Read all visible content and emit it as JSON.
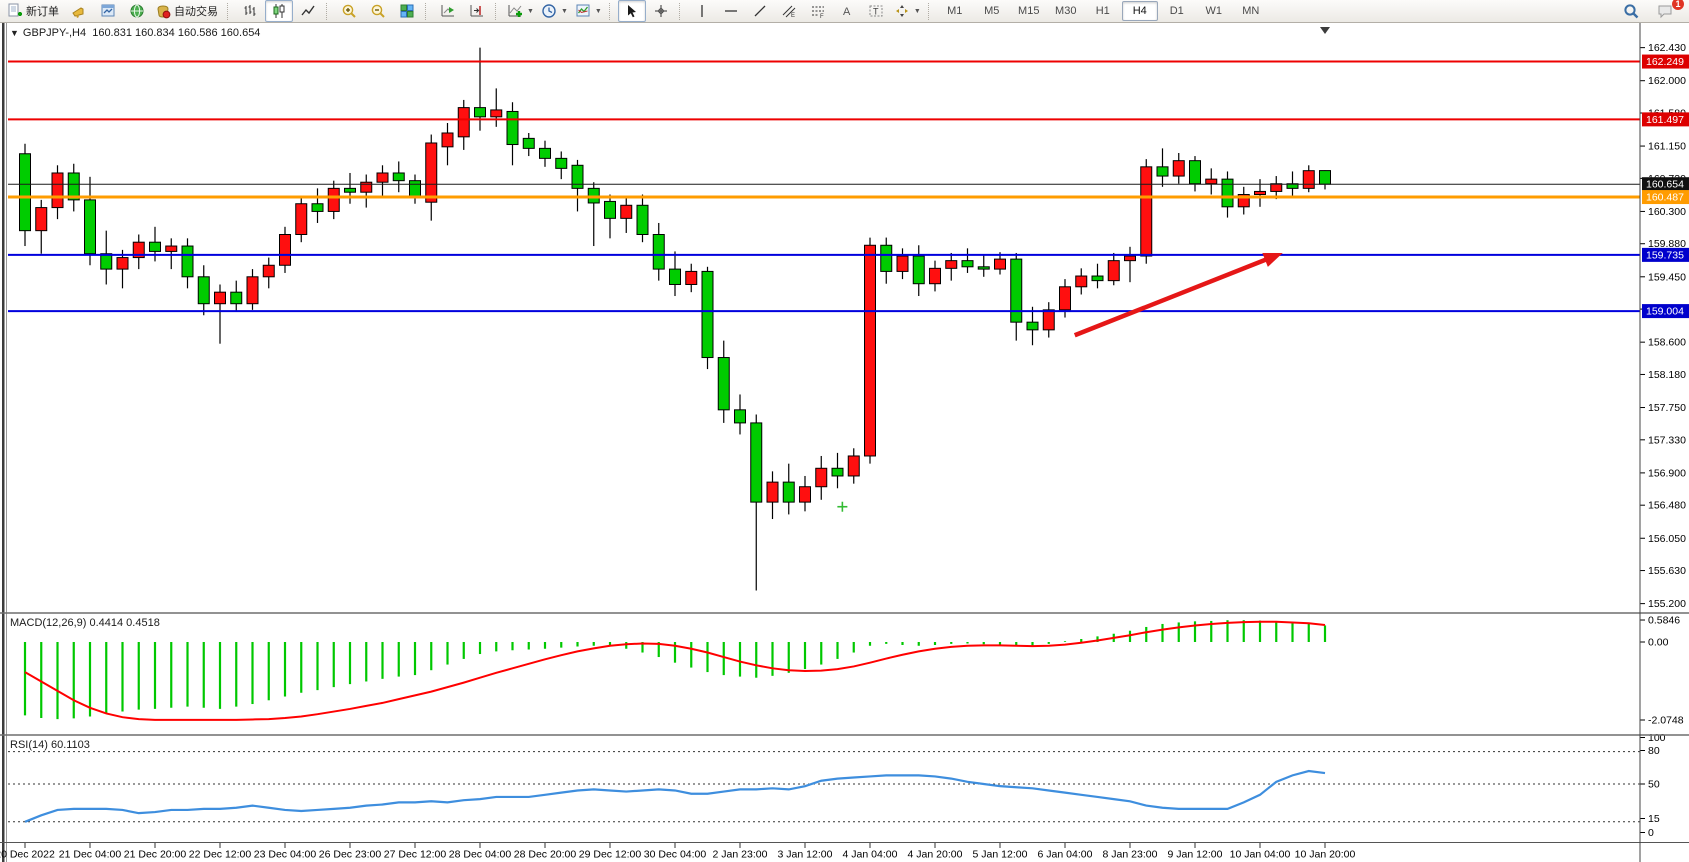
{
  "toolbar": {
    "new_order_label": "新订单",
    "autotrading_label": "自动交易",
    "timeframes": [
      "M1",
      "M5",
      "M15",
      "M30",
      "H1",
      "H4",
      "D1",
      "W1",
      "MN"
    ],
    "active_timeframe": "H4",
    "notifications_badge": "1"
  },
  "chart": {
    "symbol": "GBPJPY-",
    "period": "H4",
    "header": "GBPJPY-,H4  160.831 160.834 160.586 160.654",
    "open": "160.831",
    "high": "160.834",
    "low": "160.586",
    "close": "160.654",
    "price_ticks": [
      162.43,
      162.0,
      161.58,
      161.15,
      160.73,
      160.3,
      159.88,
      159.45,
      159.03,
      158.6,
      158.18,
      157.75,
      157.33,
      156.9,
      156.48,
      156.05,
      155.63,
      155.2
    ],
    "badges": [
      {
        "label": "162.249",
        "price": 162.249,
        "color": "#dd0000"
      },
      {
        "label": "161.497",
        "price": 161.497,
        "color": "#dd0000"
      },
      {
        "label": "160.654",
        "price": 160.654,
        "color": "#101010"
      },
      {
        "label": "160.487",
        "price": 160.487,
        "color": "#ff9c00"
      },
      {
        "label": "159.735",
        "price": 159.735,
        "color": "#0000cc"
      },
      {
        "label": "159.004",
        "price": 159.004,
        "color": "#0000cc"
      }
    ],
    "hlines": [
      {
        "name": "resistance-line-162249",
        "price": 162.249,
        "color": "#ee0000",
        "w": 2
      },
      {
        "name": "resistance-line-161497",
        "price": 161.497,
        "color": "#ee0000",
        "w": 2
      },
      {
        "name": "bid-price-line",
        "price": 160.654,
        "color": "#1a1a1a",
        "w": 1
      },
      {
        "name": "order-line-160487",
        "price": 160.487,
        "color": "#ff9c00",
        "w": 3
      },
      {
        "name": "support-line-159735",
        "price": 159.735,
        "color": "#0000dd",
        "w": 2
      },
      {
        "name": "support-line-159004",
        "price": 159.004,
        "color": "#0000dd",
        "w": 2
      }
    ],
    "arrow": {
      "from_bar": 64.6,
      "from_price": 158.69,
      "to_bar": 77.4,
      "to_price": 159.76,
      "color": "#e51717"
    },
    "marker_cross": {
      "bar": 50.3,
      "price": 156.46,
      "color": "#33bb33"
    },
    "shift_marker_bar": 80,
    "time_labels": [
      "20 Dec 2022",
      "21 Dec 04:00",
      "21 Dec 20:00",
      "22 Dec 12:00",
      "23 Dec 04:00",
      "26 Dec 23:00",
      "27 Dec 12:00",
      "28 Dec 04:00",
      "28 Dec 20:00",
      "29 Dec 12:00",
      "30 Dec 04:00",
      "2 Jan 23:00",
      "3 Jan 12:00",
      "4 Jan 04:00",
      "4 Jan 20:00",
      "5 Jan 12:00",
      "6 Jan 04:00",
      "8 Jan 23:00",
      "9 Jan 12:00",
      "10 Jan 04:00",
      "10 Jan 20:00"
    ],
    "candles": [
      [
        161.05,
        161.18,
        159.85,
        160.05
      ],
      [
        160.05,
        160.45,
        159.75,
        160.35
      ],
      [
        160.35,
        160.9,
        160.2,
        160.8
      ],
      [
        160.8,
        160.92,
        160.3,
        160.45
      ],
      [
        160.45,
        160.75,
        159.6,
        159.75
      ],
      [
        159.75,
        160.05,
        159.35,
        159.55
      ],
      [
        159.55,
        159.8,
        159.3,
        159.7
      ],
      [
        159.7,
        160.0,
        159.55,
        159.9
      ],
      [
        159.9,
        160.1,
        159.65,
        159.78
      ],
      [
        159.78,
        159.95,
        159.55,
        159.85
      ],
      [
        159.85,
        159.95,
        159.3,
        159.45
      ],
      [
        159.45,
        159.6,
        158.95,
        159.1
      ],
      [
        159.1,
        159.35,
        158.58,
        159.25
      ],
      [
        159.25,
        159.4,
        159.0,
        159.1
      ],
      [
        159.1,
        159.55,
        159.02,
        159.45
      ],
      [
        159.45,
        159.7,
        159.3,
        159.6
      ],
      [
        159.6,
        160.1,
        159.5,
        160.0
      ],
      [
        160.0,
        160.5,
        159.9,
        160.4
      ],
      [
        160.4,
        160.6,
        160.15,
        160.3
      ],
      [
        160.3,
        160.7,
        160.2,
        160.6
      ],
      [
        160.6,
        160.8,
        160.4,
        160.55
      ],
      [
        160.55,
        160.78,
        160.35,
        160.68
      ],
      [
        160.68,
        160.9,
        160.5,
        160.8
      ],
      [
        160.8,
        160.95,
        160.55,
        160.7
      ],
      [
        160.7,
        160.78,
        160.4,
        160.5
      ],
      [
        160.42,
        161.3,
        160.18,
        161.19
      ],
      [
        161.14,
        161.45,
        160.9,
        161.32
      ],
      [
        161.27,
        161.75,
        161.1,
        161.65
      ],
      [
        161.65,
        162.43,
        161.35,
        161.53
      ],
      [
        161.53,
        161.9,
        161.4,
        161.62
      ],
      [
        161.6,
        161.72,
        160.9,
        161.17
      ],
      [
        161.25,
        161.32,
        161.02,
        161.12
      ],
      [
        161.12,
        161.22,
        160.88,
        160.99
      ],
      [
        160.99,
        161.08,
        160.72,
        160.86
      ],
      [
        160.9,
        160.97,
        160.3,
        160.6
      ],
      [
        160.6,
        160.68,
        159.85,
        160.41
      ],
      [
        160.43,
        160.52,
        159.95,
        160.21
      ],
      [
        160.21,
        160.48,
        160.02,
        160.38
      ],
      [
        160.38,
        160.52,
        159.9,
        160.0
      ],
      [
        160.0,
        160.15,
        159.4,
        159.55
      ],
      [
        159.55,
        159.78,
        159.2,
        159.35
      ],
      [
        159.35,
        159.62,
        159.25,
        159.52
      ],
      [
        159.52,
        159.58,
        158.25,
        158.4
      ],
      [
        158.4,
        158.62,
        157.55,
        157.72
      ],
      [
        157.72,
        157.92,
        157.4,
        157.55
      ],
      [
        157.55,
        157.66,
        155.37,
        156.52
      ],
      [
        156.52,
        156.92,
        156.3,
        156.78
      ],
      [
        156.78,
        157.02,
        156.36,
        156.52
      ],
      [
        156.52,
        156.86,
        156.4,
        156.72
      ],
      [
        156.72,
        157.12,
        156.55,
        156.96
      ],
      [
        156.96,
        157.16,
        156.7,
        156.86
      ],
      [
        156.86,
        157.22,
        156.76,
        157.12
      ],
      [
        157.12,
        159.96,
        157.02,
        159.86
      ],
      [
        159.86,
        159.96,
        159.36,
        159.52
      ],
      [
        159.52,
        159.82,
        159.42,
        159.72
      ],
      [
        159.72,
        159.86,
        159.2,
        159.36
      ],
      [
        159.36,
        159.66,
        159.26,
        159.56
      ],
      [
        159.56,
        159.76,
        159.4,
        159.66
      ],
      [
        159.66,
        159.82,
        159.5,
        159.58
      ],
      [
        159.58,
        159.74,
        159.45,
        159.55
      ],
      [
        159.55,
        159.77,
        159.48,
        159.68
      ],
      [
        159.68,
        159.76,
        158.62,
        158.86
      ],
      [
        158.86,
        159.06,
        158.56,
        158.76
      ],
      [
        158.76,
        159.12,
        158.66,
        159.02
      ],
      [
        159.02,
        159.42,
        158.92,
        159.32
      ],
      [
        159.32,
        159.56,
        159.22,
        159.46
      ],
      [
        159.46,
        159.62,
        159.3,
        159.4
      ],
      [
        159.4,
        159.76,
        159.34,
        159.66
      ],
      [
        159.66,
        159.84,
        159.38,
        159.72
      ],
      [
        159.72,
        160.98,
        159.62,
        160.88
      ],
      [
        160.88,
        161.12,
        160.62,
        160.76
      ],
      [
        160.76,
        161.06,
        160.66,
        160.96
      ],
      [
        160.96,
        161.02,
        160.56,
        160.66
      ],
      [
        160.66,
        160.86,
        160.52,
        160.72
      ],
      [
        160.72,
        160.82,
        160.22,
        160.36
      ],
      [
        160.36,
        160.62,
        160.26,
        160.52
      ],
      [
        160.52,
        160.72,
        160.36,
        160.56
      ],
      [
        160.56,
        160.76,
        160.46,
        160.66
      ],
      [
        160.66,
        160.82,
        160.5,
        160.6
      ],
      [
        160.6,
        160.9,
        160.55,
        160.83
      ],
      [
        160.831,
        160.834,
        160.586,
        160.654
      ]
    ]
  },
  "macd": {
    "label": "MACD(12,26,9)",
    "value_main": "0.4414",
    "value_signal": "0.4518",
    "label_full": "MACD(12,26,9) 0.4414 0.4518",
    "axis": [
      {
        "label": "0.5846",
        "value": 0.5846
      },
      {
        "label": "0.00",
        "value": 0.0
      },
      {
        "label": "-2.0748",
        "value": -2.0748
      }
    ],
    "histogram": [
      -1.95,
      -2.02,
      -2.05,
      -2.03,
      -1.98,
      -1.9,
      -1.85,
      -1.8,
      -1.78,
      -1.75,
      -1.72,
      -1.75,
      -1.78,
      -1.72,
      -1.65,
      -1.55,
      -1.45,
      -1.35,
      -1.28,
      -1.2,
      -1.12,
      -1.05,
      -0.98,
      -0.92,
      -0.88,
      -0.75,
      -0.6,
      -0.45,
      -0.32,
      -0.25,
      -0.22,
      -0.2,
      -0.18,
      -0.15,
      -0.12,
      -0.1,
      -0.12,
      -0.18,
      -0.28,
      -0.4,
      -0.55,
      -0.68,
      -0.8,
      -0.88,
      -0.92,
      -0.95,
      -0.9,
      -0.82,
      -0.72,
      -0.6,
      -0.45,
      -0.28,
      -0.1,
      -0.05,
      -0.08,
      -0.1,
      -0.08,
      -0.05,
      -0.04,
      -0.06,
      -0.08,
      -0.12,
      -0.1,
      -0.05,
      0.02,
      0.08,
      0.15,
      0.22,
      0.3,
      0.4,
      0.48,
      0.52,
      0.55,
      0.56,
      0.58,
      0.58,
      0.57,
      0.55,
      0.52,
      0.48,
      0.4414
    ],
    "signal": [
      -0.8,
      -1.05,
      -1.3,
      -1.55,
      -1.75,
      -1.9,
      -2.0,
      -2.05,
      -2.07,
      -2.07,
      -2.07,
      -2.07,
      -2.07,
      -2.07,
      -2.06,
      -2.05,
      -2.02,
      -1.98,
      -1.92,
      -1.85,
      -1.78,
      -1.7,
      -1.62,
      -1.52,
      -1.42,
      -1.32,
      -1.2,
      -1.08,
      -0.95,
      -0.82,
      -0.7,
      -0.58,
      -0.46,
      -0.35,
      -0.25,
      -0.17,
      -0.1,
      -0.06,
      -0.04,
      -0.05,
      -0.1,
      -0.18,
      -0.28,
      -0.4,
      -0.52,
      -0.62,
      -0.7,
      -0.75,
      -0.77,
      -0.76,
      -0.72,
      -0.65,
      -0.55,
      -0.44,
      -0.34,
      -0.25,
      -0.18,
      -0.13,
      -0.1,
      -0.09,
      -0.09,
      -0.1,
      -0.11,
      -0.1,
      -0.07,
      -0.02,
      0.04,
      0.11,
      0.18,
      0.26,
      0.33,
      0.39,
      0.44,
      0.48,
      0.51,
      0.53,
      0.54,
      0.54,
      0.52,
      0.5,
      0.4518
    ]
  },
  "rsi": {
    "label": "RSI(14)",
    "value": "60.1103",
    "label_full": "RSI(14) 60.1103",
    "axis": [
      "100",
      "80",
      "50",
      "15",
      "0"
    ],
    "levels": [
      80,
      50,
      15
    ],
    "values": [
      15,
      21,
      26,
      27,
      27,
      27,
      26,
      23,
      24,
      26,
      26,
      27,
      27,
      28,
      30,
      28,
      26,
      25,
      26,
      27,
      28,
      30,
      31,
      33,
      33,
      34,
      33,
      35,
      36,
      38,
      38,
      38,
      40,
      42,
      44,
      45,
      44,
      43,
      44,
      45,
      44,
      41,
      41,
      43,
      45,
      45,
      46,
      45,
      48,
      53,
      55,
      56,
      57,
      58,
      58,
      58,
      57,
      55,
      52,
      50,
      48,
      47,
      46,
      44,
      42,
      40,
      38,
      36,
      34,
      30,
      28,
      27,
      27,
      27,
      27,
      33,
      40,
      52,
      58,
      62,
      60.1103
    ]
  },
  "colors": {
    "bull_candle": "#ff0f0f",
    "bear_candle": "#00cc00",
    "wick": "#000000",
    "macd_hist": "#00c800",
    "macd_signal": "#ff0000",
    "rsi_line": "#3e8ede",
    "axis_text": "#000000",
    "badge_text": "#ffffff"
  }
}
